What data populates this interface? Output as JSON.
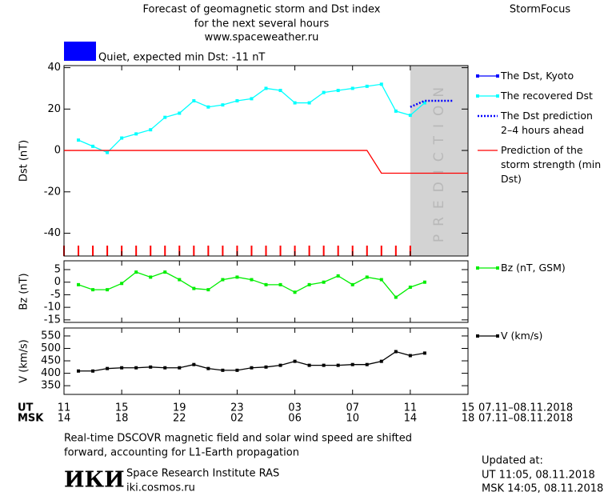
{
  "header": {
    "title_lines": [
      "Forecast of geomagnetic storm and Dst index",
      "for the next several hours",
      "www.spaceweather.ru"
    ],
    "brand": "StormFocus",
    "status": "Quiet, expected min Dst: -11 nT",
    "status_color": "#0000ff"
  },
  "chart_data": [
    {
      "type": "line",
      "ylabel": "Dst (nT)",
      "xlim": [
        0,
        28
      ],
      "ylim": [
        -51,
        41
      ],
      "yticks": [
        40,
        20,
        0,
        -20,
        -40
      ],
      "prediction_zone": [
        24,
        28
      ],
      "prediction_label": "PREDICTION",
      "prediction_color": "#d3d3d3",
      "hour_marks": [
        0,
        1,
        2,
        3,
        4,
        5,
        6,
        7,
        8,
        9,
        10,
        11,
        12,
        13,
        14,
        15,
        16,
        17,
        18,
        19,
        20,
        21,
        22,
        23,
        24
      ],
      "hour_mark_color": "#ff0000",
      "series": [
        {
          "name": "The Dst, Kyoto",
          "color": "#0000ff",
          "style": "solid",
          "marker": "square",
          "x": [],
          "values": []
        },
        {
          "name": "The recovered Dst",
          "color": "#00ffff",
          "style": "solid",
          "marker": "square",
          "x": [
            1,
            2,
            3,
            4,
            5,
            6,
            7,
            8,
            9,
            10,
            11,
            12,
            13,
            14,
            15,
            16,
            17,
            18,
            19,
            20,
            21,
            22,
            23,
            24,
            25
          ],
          "values": [
            5,
            2,
            -1,
            6,
            8,
            10,
            16,
            18,
            24,
            21,
            22,
            24,
            25,
            30,
            29,
            23,
            23,
            28,
            29,
            30,
            31,
            32,
            19,
            17,
            23
          ]
        },
        {
          "name": "The Dst prediction 2–4 hours ahead",
          "color": "#0000ff",
          "style": "dotted",
          "marker": "none",
          "x": [
            24,
            25,
            26,
            27
          ],
          "values": [
            21,
            24,
            24,
            24
          ]
        },
        {
          "name": "Prediction of the storm strength (min Dst)",
          "color": "#ff0000",
          "style": "solid",
          "marker": "none",
          "x": [
            0,
            21,
            22,
            28
          ],
          "values": [
            0,
            0,
            -11,
            -11
          ]
        }
      ]
    },
    {
      "type": "line",
      "ylabel": "Bz (nT)",
      "xlim": [
        0,
        28
      ],
      "ylim": [
        -16,
        8.5
      ],
      "yticks": [
        5,
        0,
        -5,
        -10,
        -15
      ],
      "series": [
        {
          "name": "Bz (nT, GSM)",
          "color": "#00ee00",
          "style": "solid",
          "marker": "square",
          "x": [
            1,
            2,
            3,
            4,
            5,
            6,
            7,
            8,
            9,
            10,
            11,
            12,
            13,
            14,
            15,
            16,
            17,
            18,
            19,
            20,
            21,
            22,
            23,
            24,
            25
          ],
          "values": [
            -1,
            -3,
            -3,
            -0.5,
            4,
            2,
            4,
            1,
            -2.5,
            -3,
            1,
            2,
            1,
            -1,
            -1,
            -4,
            -1,
            0,
            2.5,
            -1,
            2,
            1,
            -6,
            -2,
            0
          ]
        }
      ]
    },
    {
      "type": "line",
      "ylabel": "V (km/s)",
      "xlim": [
        0,
        28
      ],
      "ylim": [
        315,
        582
      ],
      "yticks": [
        550,
        500,
        450,
        400,
        350
      ],
      "xticks": [
        {
          "value": 0,
          "label": "11"
        },
        {
          "value": 4,
          "label": "15"
        },
        {
          "value": 8,
          "label": "19"
        },
        {
          "value": 12,
          "label": "23"
        },
        {
          "value": 16,
          "label": "03"
        },
        {
          "value": 20,
          "label": "07"
        },
        {
          "value": 24,
          "label": "11"
        },
        {
          "value": 28,
          "label": "15"
        }
      ],
      "xticks_msk": [
        "14",
        "18",
        "22",
        "02",
        "06",
        "10",
        "14",
        "18"
      ],
      "x_row_labels": [
        "UT",
        "MSK"
      ],
      "x_date_ranges": [
        "07.11–08.11.2018",
        "07.11–08.11.2018"
      ],
      "series": [
        {
          "name": "V (km/s)",
          "color": "#000000",
          "style": "solid",
          "marker": "square",
          "x": [
            1,
            2,
            3,
            4,
            5,
            6,
            7,
            8,
            9,
            10,
            11,
            12,
            13,
            14,
            15,
            16,
            17,
            18,
            19,
            20,
            21,
            22,
            23,
            24,
            25
          ],
          "values": [
            409,
            409,
            419,
            422,
            422,
            425,
            422,
            422,
            435,
            419,
            412,
            412,
            422,
            425,
            432,
            448,
            432,
            432,
            432,
            435,
            435,
            448,
            487,
            471,
            481
          ]
        }
      ]
    }
  ],
  "footer": {
    "note_lines": [
      "Real-time DSCOVR magnetic field and solar wind speed are shifted",
      "forward, accounting for L1-Earth propagation"
    ],
    "logo": "ИКИ",
    "institute": "Space Research Institute RAS",
    "website": "iki.cosmos.ru",
    "updated": [
      "Updated at:",
      "UT  11:05, 08.11.2018",
      "MSK 14:05, 08.11.2018"
    ]
  }
}
